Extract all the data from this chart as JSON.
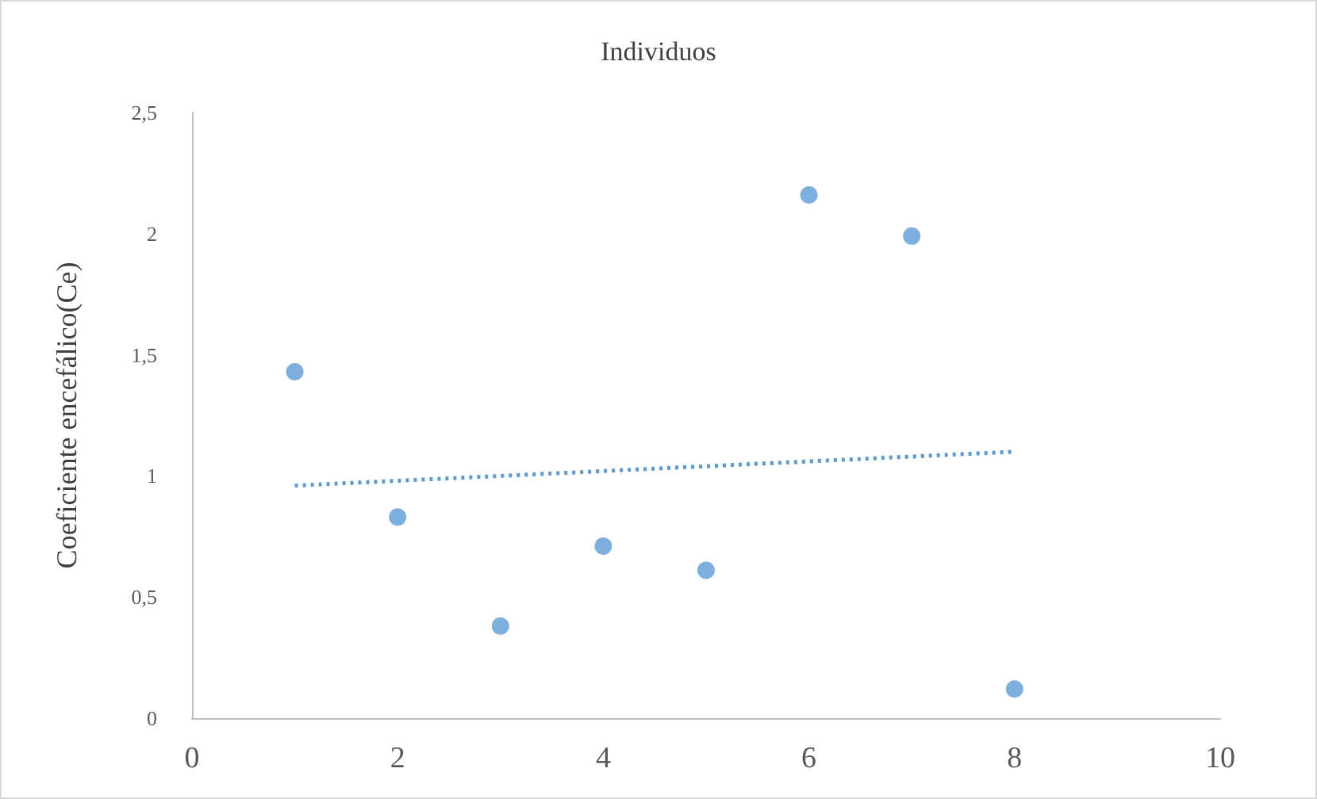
{
  "chart_data": {
    "type": "scatter",
    "title": "Individuos",
    "ylabel": "Coeficiente encefálico(Ce)",
    "series": [
      {
        "color": "#5b9bd5",
        "x": [
          1,
          2,
          3,
          4,
          5,
          6,
          7,
          8
        ],
        "values": [
          1.43,
          0.83,
          0.38,
          0.71,
          0.61,
          2.16,
          1.99,
          0.12
        ],
        "marker": "circle"
      },
      {
        "type": "line",
        "color": "#5b9bd5",
        "x": [
          1,
          8
        ],
        "values": [
          0.96,
          1.1
        ],
        "line_style": "dotted",
        "marker": "none"
      }
    ],
    "xlim": [
      0,
      10
    ],
    "xticks": [
      0,
      2,
      4,
      6,
      8,
      10
    ],
    "ylim": [
      0,
      2.5
    ],
    "yticks": [
      0,
      {
        "value": 0.5,
        "label": "0,5"
      },
      1,
      {
        "value": 1.5,
        "label": "1,5"
      },
      2,
      {
        "value": 2.5,
        "label": "2,5"
      }
    ],
    "grid": false
  }
}
